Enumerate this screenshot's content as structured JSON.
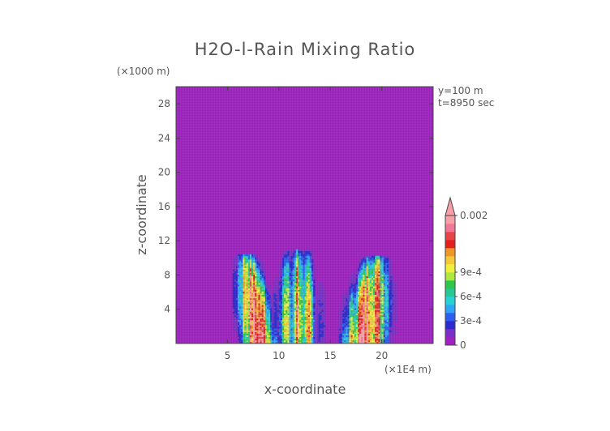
{
  "chart_data": {
    "type": "heatmap",
    "title": "H2O-l-Rain Mixing Ratio",
    "xlabel": "x-coordinate",
    "ylabel": "z-coordinate",
    "x_unit_label": "(×1E4 m)",
    "y_unit_label": "(×1000 m)",
    "annotations": [
      "y=100 m",
      "t=8950 sec"
    ],
    "xlim": [
      0,
      25
    ],
    "ylim": [
      0,
      30
    ],
    "x_ticks": [
      5,
      10,
      15,
      20
    ],
    "y_ticks": [
      4,
      8,
      12,
      16,
      20,
      24,
      28
    ],
    "x_tick_labels": [
      "5",
      "10",
      "15",
      "20"
    ],
    "y_tick_labels": [
      "4",
      "8",
      "12",
      "16",
      "20",
      "24",
      "28"
    ],
    "background_value": 0,
    "cells": [
      {
        "name": "left",
        "x_center": 7.6,
        "x_half_width": 1.9,
        "top": 10.5,
        "peak": 0.002
      },
      {
        "name": "center",
        "x_center": 11.8,
        "x_half_width": 2.6,
        "top": 11.0,
        "peak": 0.0016
      },
      {
        "name": "right",
        "x_center": 18.8,
        "x_half_width": 2.4,
        "top": 10.3,
        "peak": 0.002
      }
    ],
    "colorbar": {
      "levels": [
        0,
        0.0001,
        0.0002,
        0.0003,
        0.0004,
        0.0005,
        0.0006,
        0.0007,
        0.0008,
        0.0009,
        0.001,
        0.0012,
        0.0014,
        0.0016,
        0.0018,
        0.002
      ],
      "colors": [
        "#a020c0",
        "#7b2fc8",
        "#2d2ad2",
        "#2c5ff0",
        "#2ea5f5",
        "#26d2d2",
        "#28c896",
        "#2dc84b",
        "#aee83c",
        "#f0f03c",
        "#f5c83a",
        "#f09628",
        "#e61e1e",
        "#e64646",
        "#f07896",
        "#f8a0a8"
      ],
      "extend": "max",
      "tick_labels": [
        "0",
        "3e-4",
        "6e-4",
        "9e-4",
        "0.002"
      ],
      "tick_values": [
        0,
        0.0003,
        0.0006,
        0.0009,
        0.002
      ]
    }
  },
  "colors": {
    "background_field": "#a01ec4",
    "text": "#555555",
    "axis": "#444444"
  }
}
